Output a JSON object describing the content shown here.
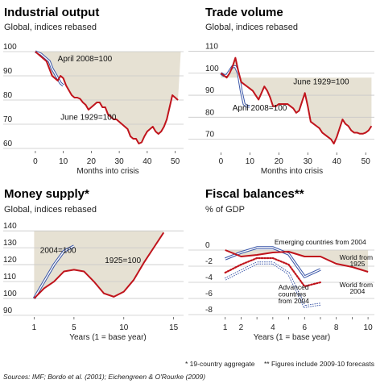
{
  "colors": {
    "red": "#c0141c",
    "blue": "#3a56a8",
    "shade": "#e6e1d3",
    "grid": "#c8c8c8"
  },
  "footnotes": {
    "left": "* 19-country aggregate",
    "right": "** Figures include 2009-10 forecasts",
    "sources": "Sources: IMF; Bordo et al. (2001); Eichengreen & O'Rourke (2009)"
  },
  "chart_data": [
    {
      "type": "line",
      "title": "Industrial output",
      "subtitle": "Global, indices rebased",
      "xlabel": "Months into crisis",
      "xlim": [
        -4,
        53
      ],
      "ylim": [
        59,
        102
      ],
      "xticks": [
        0,
        10,
        20,
        30,
        40,
        50
      ],
      "yticks": [
        100,
        90,
        80,
        70,
        60
      ],
      "shade_top": 100,
      "shade_x": [
        0,
        52
      ],
      "series": [
        {
          "name": "June 1929=100",
          "style": "red",
          "x": [
            0,
            1,
            2,
            3,
            4,
            5,
            6,
            7,
            8,
            9,
            10,
            11,
            12,
            13,
            14,
            15,
            16,
            17,
            18,
            19,
            20,
            21,
            22,
            23,
            24,
            25,
            26,
            27,
            28,
            29,
            30,
            31,
            32,
            33,
            34,
            35,
            36,
            37,
            38,
            39,
            40,
            41,
            42,
            43,
            44,
            45,
            46,
            47,
            48,
            49,
            50,
            51
          ],
          "y": [
            100,
            99,
            98,
            97,
            96,
            93,
            90,
            89,
            88,
            90,
            89,
            86,
            84,
            82,
            81,
            81,
            80.5,
            79,
            78,
            76,
            77,
            78,
            79,
            79,
            77,
            77,
            74,
            73,
            72,
            72,
            71,
            70,
            69,
            68,
            65,
            64,
            64,
            62,
            62.5,
            65,
            67,
            68,
            69,
            67,
            66,
            67,
            69,
            72,
            77,
            82,
            81,
            80
          ]
        },
        {
          "name": "April 2008=100",
          "style": "blue",
          "x": [
            0,
            1,
            2,
            3,
            4,
            5,
            6,
            7,
            8,
            9,
            10
          ],
          "y": [
            100,
            99.5,
            99,
            98,
            97,
            96,
            93,
            91,
            89,
            87,
            86
          ]
        }
      ],
      "annotations": [
        {
          "text": "April 2008=100",
          "x": 8,
          "y": 96
        },
        {
          "text": "June 1929=100",
          "x": 9,
          "y": 71.8
        }
      ]
    },
    {
      "type": "line",
      "title": "Trade volume",
      "subtitle": "Global, indices rebased",
      "xlabel": "Months into crisis",
      "xlim": [
        -4,
        53
      ],
      "ylim": [
        64,
        112
      ],
      "xticks": [
        0,
        10,
        20,
        30,
        40,
        50
      ],
      "yticks": [
        110,
        100,
        90,
        80,
        70
      ],
      "shade_top": 98,
      "shade_x": [
        0,
        52
      ],
      "series": [
        {
          "name": "June 1929=100",
          "style": "red",
          "x": [
            0,
            1,
            2,
            3,
            4,
            5,
            6,
            7,
            8,
            9,
            10,
            11,
            12,
            13,
            14,
            15,
            16,
            17,
            18,
            19,
            20,
            21,
            22,
            23,
            24,
            25,
            26,
            27,
            28,
            29,
            30,
            31,
            32,
            33,
            34,
            35,
            36,
            37,
            38,
            39,
            40,
            41,
            42,
            43,
            44,
            45,
            46,
            47,
            48,
            49,
            50,
            51,
            52
          ],
          "y": [
            100,
            99,
            98,
            100,
            103,
            107,
            101,
            96,
            95,
            94,
            93,
            92,
            90,
            88,
            91,
            94,
            92,
            89,
            85,
            85,
            86,
            86,
            86,
            86,
            85,
            84,
            82,
            83,
            87,
            91,
            85,
            78,
            77,
            76,
            75,
            73,
            72,
            71,
            70,
            68,
            71,
            75,
            79,
            77,
            76,
            74,
            73,
            73,
            72.5,
            72.5,
            73,
            74,
            76
          ]
        },
        {
          "name": "April 2008=100",
          "style": "blue",
          "x": [
            0,
            1,
            2,
            3,
            4,
            5,
            6,
            7,
            8,
            9,
            10
          ],
          "y": [
            100,
            99,
            99,
            101,
            103,
            103,
            100,
            92,
            86,
            85,
            85
          ]
        }
      ],
      "annotations": [
        {
          "text": "June 1929=100",
          "x": 25,
          "y": 95
        },
        {
          "text": "April 2008=100",
          "x": 4,
          "y": 83
        }
      ]
    },
    {
      "type": "line",
      "title": "Money supply*",
      "subtitle": "Global, indices rebased",
      "xlabel": "Years (1 = base year)",
      "xlim": [
        0,
        16
      ],
      "ylim": [
        89,
        142
      ],
      "xticks": [
        1,
        5,
        10,
        15
      ],
      "yticks": [
        140,
        130,
        120,
        110,
        100,
        90
      ],
      "shade_top": 140,
      "shade_x": [
        1,
        14
      ],
      "series": [
        {
          "name": "1925=100",
          "style": "red",
          "x": [
            1,
            2,
            3,
            4,
            5,
            6,
            7,
            8,
            9,
            10,
            11,
            12,
            13,
            14
          ],
          "y": [
            100,
            106,
            110,
            116,
            117,
            116,
            110,
            103,
            101,
            104,
            111,
            121,
            130,
            139
          ]
        },
        {
          "name": "2004=100",
          "style": "blue",
          "x": [
            1,
            2,
            3,
            4,
            5
          ],
          "y": [
            100,
            110,
            120,
            128,
            131
          ]
        }
      ],
      "annotations": [
        {
          "text": "2004=100",
          "x": 1.6,
          "y": 127
        },
        {
          "text": "1925=100",
          "x": 8.1,
          "y": 121
        }
      ]
    },
    {
      "type": "line",
      "title": "Fiscal balances**",
      "subtitle": "% of GDP",
      "xlabel": "Years (1 = base year)",
      "xlim": [
        0,
        10.4
      ],
      "ylim": [
        -8.3,
        1.7
      ],
      "xticks": [
        1,
        2,
        3,
        4,
        5,
        6,
        7,
        8,
        9,
        10
      ],
      "xtick_labels": [
        "1",
        "2",
        "",
        "4",
        "",
        "6",
        "",
        "8",
        "",
        "10"
      ],
      "yticks": [
        0,
        -2,
        -4,
        -6,
        -8
      ],
      "ytick_labels": [
        "0",
        "-2",
        "-4",
        "-6",
        "-8"
      ],
      "shade_top": 0,
      "shade_x": [
        1,
        10
      ],
      "series": [
        {
          "name": "World from 1925",
          "style": "red",
          "x": [
            1,
            2,
            3,
            4,
            5,
            6,
            7,
            8,
            9,
            10
          ],
          "y": [
            0,
            -0.8,
            -0.6,
            -0.3,
            -0.2,
            -0.8,
            -0.8,
            -1.7,
            -2.1,
            -2.7
          ]
        },
        {
          "name": "World from 2004",
          "style": "red-dotted",
          "x": [
            1,
            2,
            3,
            4,
            5,
            6,
            7
          ],
          "y": [
            -2.8,
            -1.8,
            -1.0,
            -1.0,
            -1.8,
            -4.5,
            -4.0
          ]
        },
        {
          "name": "Emerging countries from 2004",
          "style": "blue",
          "x": [
            1,
            2,
            3,
            4,
            5,
            6,
            7
          ],
          "y": [
            -1.1,
            -0.3,
            0.3,
            0.3,
            -0.5,
            -3.3,
            -2.4
          ]
        },
        {
          "name": "Advanced countries from 2004",
          "style": "blue-hollow",
          "x": [
            1,
            2,
            3,
            4,
            5,
            6,
            7
          ],
          "y": [
            -3.6,
            -2.6,
            -1.6,
            -1.6,
            -2.9,
            -7.0,
            -6.7
          ]
        }
      ],
      "annotations": [
        {
          "text": "Emerging countries from 2004",
          "x": 4.1,
          "y": 0.7
        },
        {
          "text": "World from",
          "x": 8.2,
          "y": -1.2
        },
        {
          "text": "1925",
          "x": 8.85,
          "y": -2.0
        },
        {
          "text": "World from",
          "x": 8.2,
          "y": -4.6
        },
        {
          "text": "2004",
          "x": 8.85,
          "y": -5.4
        },
        {
          "text": "Advanced",
          "x": 4.35,
          "y": -4.9
        },
        {
          "text": "countries",
          "x": 4.35,
          "y": -5.75
        },
        {
          "text": "from 2004",
          "x": 4.35,
          "y": -6.6
        }
      ]
    }
  ]
}
